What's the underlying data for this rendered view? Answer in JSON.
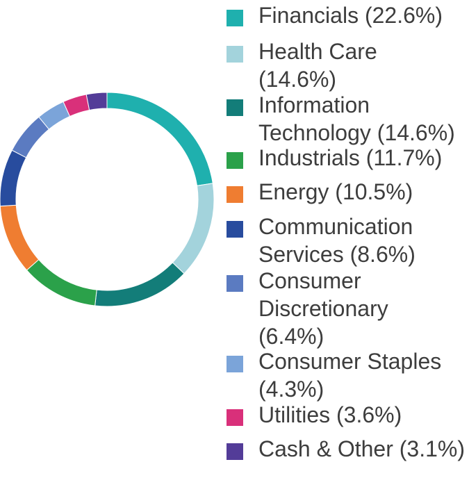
{
  "chart_data": {
    "type": "pie",
    "variant": "donut",
    "legend_position": "right",
    "slices": [
      {
        "label": "Financials (22.6%)",
        "value": 22.6,
        "color": "#1fb0ae"
      },
      {
        "label": "Health Care\n(14.6%)",
        "value": 14.6,
        "color": "#a3d3dc"
      },
      {
        "label": "Information\nTechnology (14.6%)",
        "value": 14.6,
        "color": "#137d79"
      },
      {
        "label": "Industrials (11.7%)",
        "value": 11.7,
        "color": "#2ba14a"
      },
      {
        "label": "Energy (10.5%)",
        "value": 10.5,
        "color": "#ef7d31"
      },
      {
        "label": "Communication\nServices (8.6%)",
        "value": 8.6,
        "color": "#284c9e"
      },
      {
        "label": "Consumer\nDiscretionary\n(6.4%)",
        "value": 6.4,
        "color": "#5b7bc1"
      },
      {
        "label": "Consumer Staples\n(4.3%)",
        "value": 4.3,
        "color": "#7ba4d9"
      },
      {
        "label": "Utilities (3.6%)",
        "value": 3.6,
        "color": "#d9307a"
      },
      {
        "label": "Cash & Other (3.1%)",
        "value": 3.1,
        "color": "#533c98"
      }
    ]
  }
}
